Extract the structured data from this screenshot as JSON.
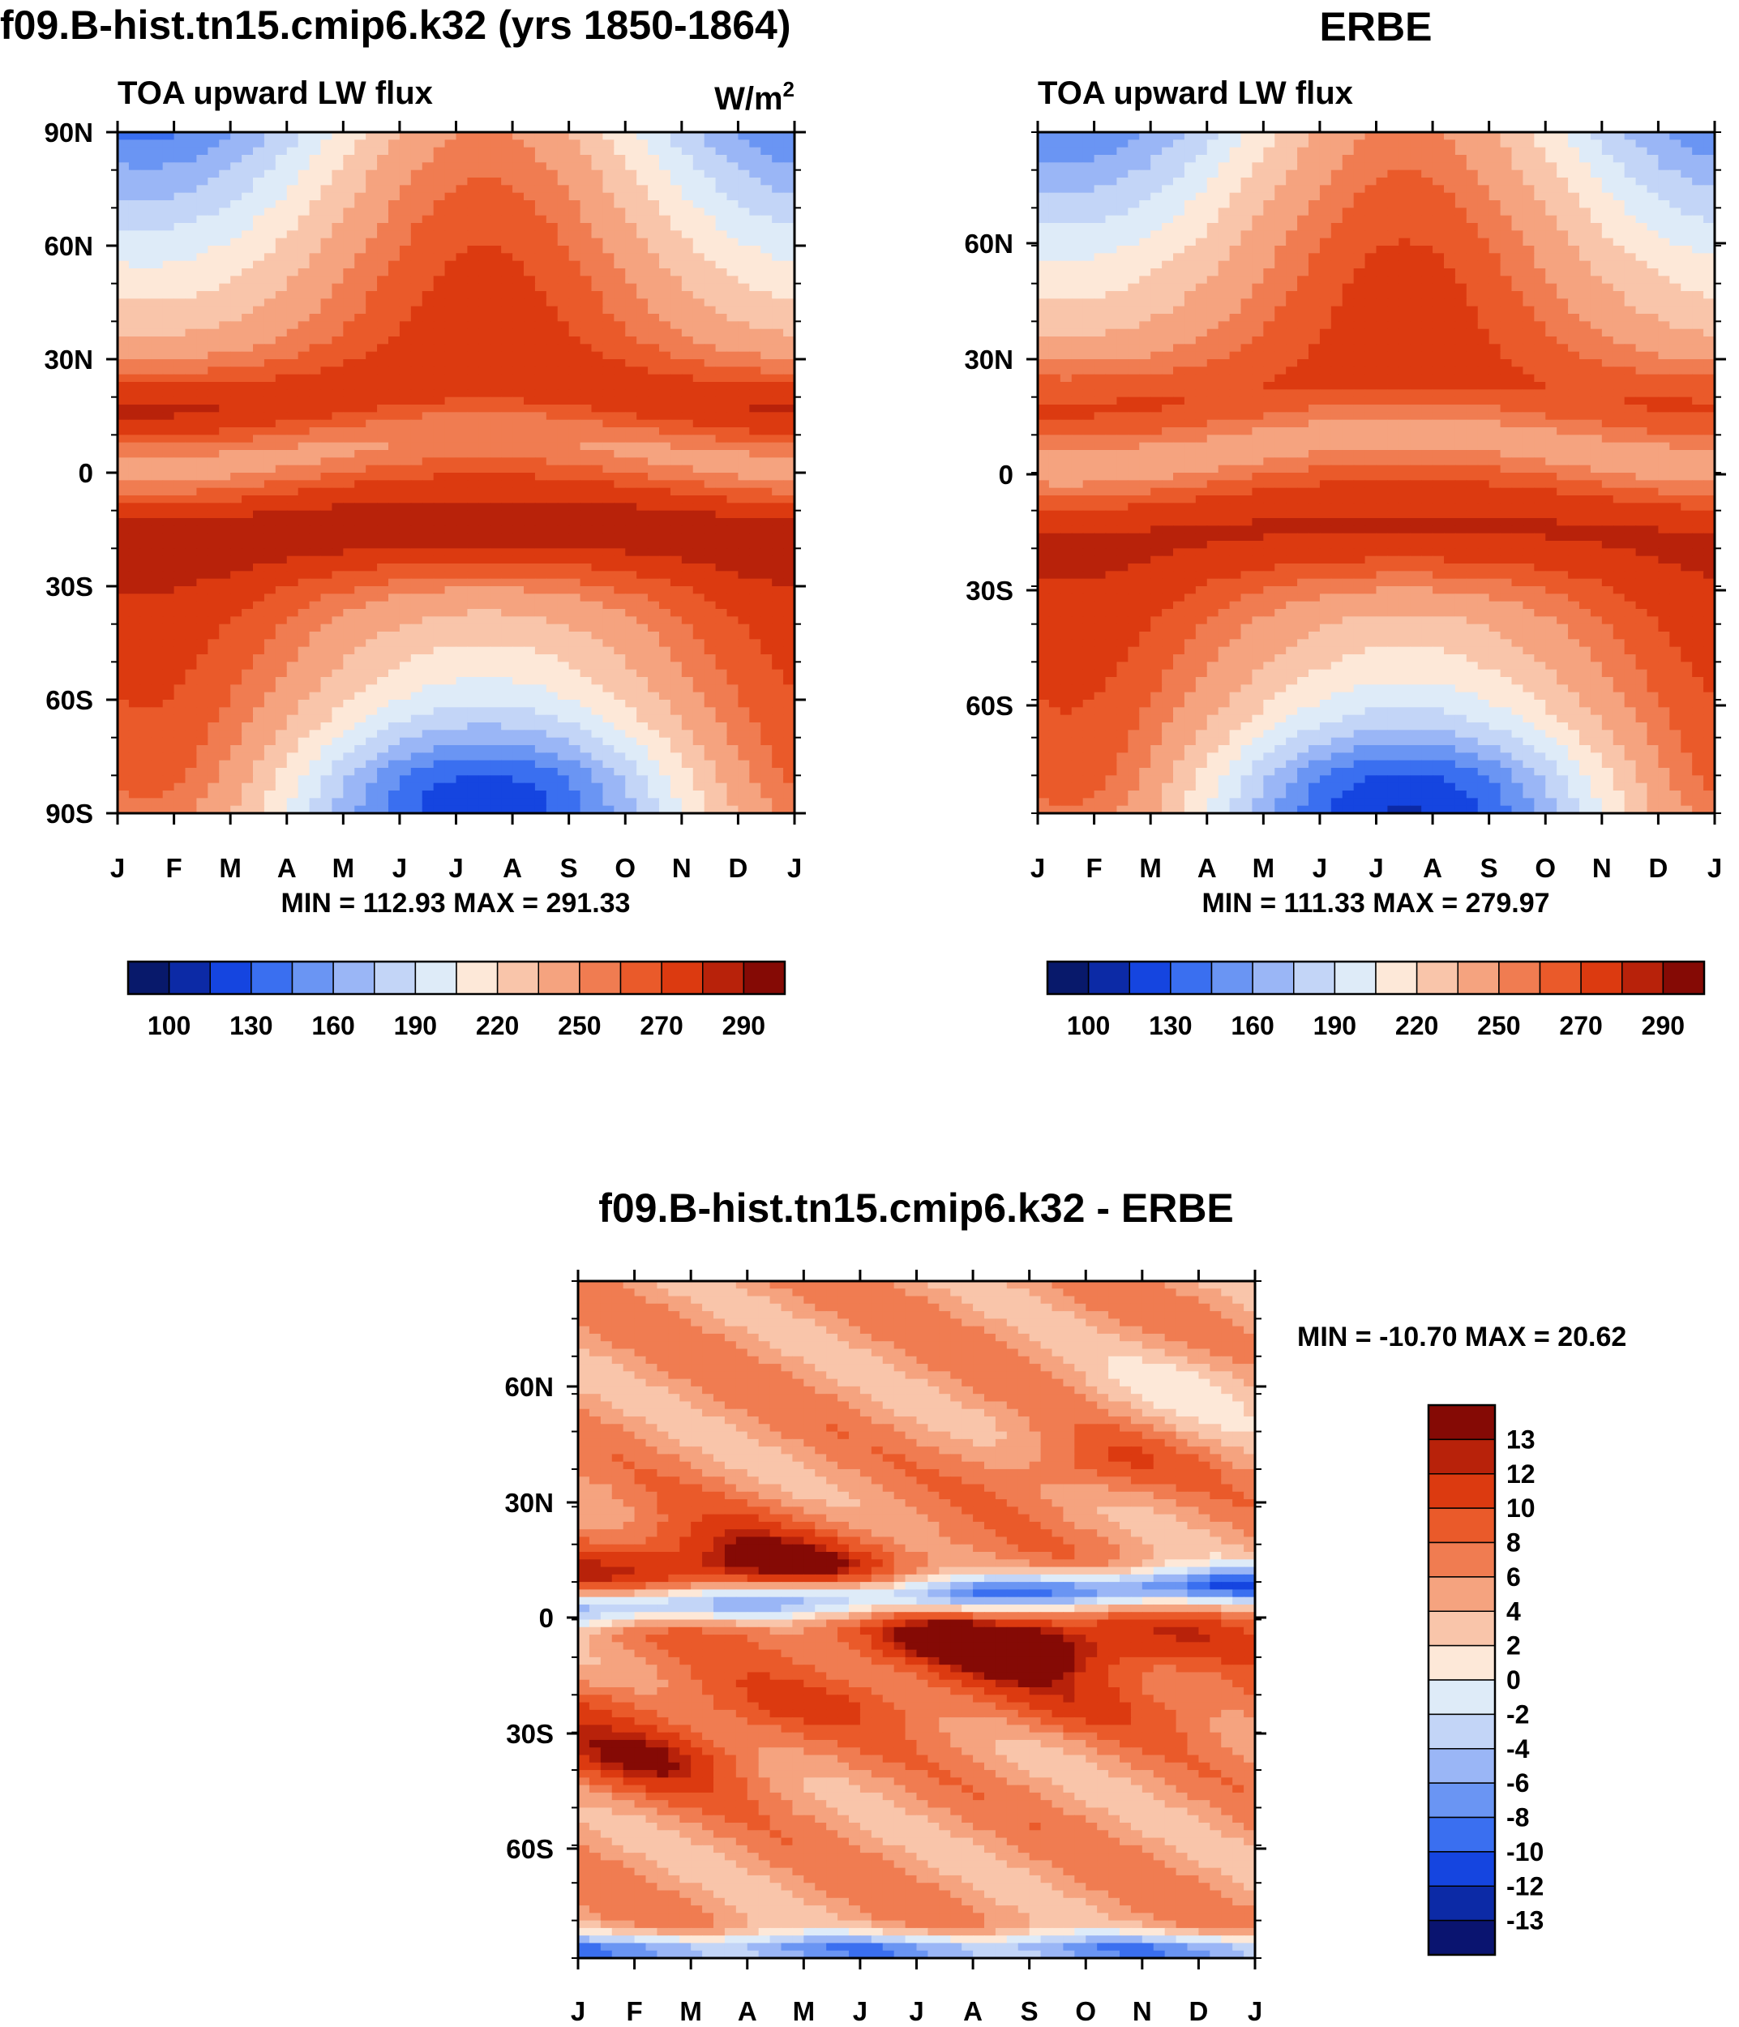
{
  "figure": {
    "title_left": "f09.B-hist.tn15.cmip6.k32 (yrs 1850-1864)",
    "title_right": "ERBE",
    "title_bottom": "f09.B-hist.tn15.cmip6.k32 - ERBE"
  },
  "colors": {
    "abs_scale": [
      "#08196b",
      "#0c2aa6",
      "#1545e0",
      "#3a6ff0",
      "#6a95f3",
      "#9ab6f6",
      "#c3d5f7",
      "#deebf8",
      "#fde8d8",
      "#f9c5aa",
      "#f5a37f",
      "#f07c51",
      "#ea5a2a",
      "#dc3a10",
      "#b8220a",
      "#850a05"
    ],
    "diff_scale": [
      "#0a1470",
      "#0c2aa6",
      "#1545e0",
      "#3a6ff0",
      "#6a95f3",
      "#9ab6f6",
      "#c3d5f7",
      "#deebf8",
      "#fde8d8",
      "#f9c5aa",
      "#f5a37f",
      "#f07c51",
      "#ea5a2a",
      "#dc3a10",
      "#b8220a",
      "#850a05"
    ]
  },
  "chart_data": [
    {
      "type": "heatmap",
      "name": "model",
      "title": "f09.B-hist.tn15.cmip6.k32 (yrs 1850-1864)",
      "subtitle_left": "TOA upward LW flux",
      "units_base": "W/m",
      "units_exp": "2",
      "x_ticks": [
        "J",
        "F",
        "M",
        "A",
        "M",
        "J",
        "J",
        "A",
        "S",
        "O",
        "N",
        "D",
        "J"
      ],
      "y_ticks": [
        "90N",
        "60N",
        "30N",
        "0",
        "30S",
        "60S",
        "90S"
      ],
      "ylim": [
        -90,
        90
      ],
      "min_max_text": "MIN = 112.93 MAX = 291.33",
      "min": 112.93,
      "max": 291.33,
      "colorbar_labels": [
        "100",
        "130",
        "160",
        "190",
        "220",
        "250",
        "270",
        "290"
      ],
      "levels": [
        100,
        115,
        130,
        145,
        160,
        175,
        190,
        205,
        220,
        235,
        250,
        260,
        270,
        280,
        290
      ],
      "model_offset": 0
    },
    {
      "type": "heatmap",
      "name": "obs",
      "title": "ERBE",
      "subtitle_left": "TOA upward LW flux",
      "x_ticks": [
        "J",
        "F",
        "M",
        "A",
        "M",
        "J",
        "J",
        "A",
        "S",
        "O",
        "N",
        "D",
        "J"
      ],
      "y_ticks": [
        "60N",
        "30N",
        "0",
        "30S",
        "60S"
      ],
      "ylim": [
        -88,
        88
      ],
      "min_max_text": "MIN = 111.33 MAX = 279.97",
      "min": 111.33,
      "max": 279.97,
      "colorbar_labels": [
        "100",
        "130",
        "160",
        "190",
        "220",
        "250",
        "270",
        "290"
      ],
      "levels": [
        100,
        115,
        130,
        145,
        160,
        175,
        190,
        205,
        220,
        235,
        250,
        260,
        270,
        280,
        290
      ]
    },
    {
      "type": "heatmap",
      "name": "difference",
      "title": "f09.B-hist.tn15.cmip6.k32 - ERBE",
      "x_ticks": [
        "J",
        "F",
        "M",
        "A",
        "M",
        "J",
        "J",
        "A",
        "S",
        "O",
        "N",
        "D",
        "J"
      ],
      "y_ticks": [
        "60N",
        "30N",
        "0",
        "30S",
        "60S"
      ],
      "ylim": [
        -88,
        88
      ],
      "min_max_text": "MIN = -10.70 MAX =  20.62",
      "min": -10.7,
      "max": 20.62,
      "colorbar_labels": [
        "13",
        "12",
        "10",
        "8",
        "6",
        "4",
        "2",
        "0",
        "-2",
        "-4",
        "-6",
        "-8",
        "-10",
        "-12",
        "-13"
      ],
      "levels": [
        -13,
        -12,
        -10,
        -8,
        -6,
        -4,
        -2,
        0,
        2,
        4,
        6,
        8,
        10,
        12,
        13
      ]
    }
  ]
}
